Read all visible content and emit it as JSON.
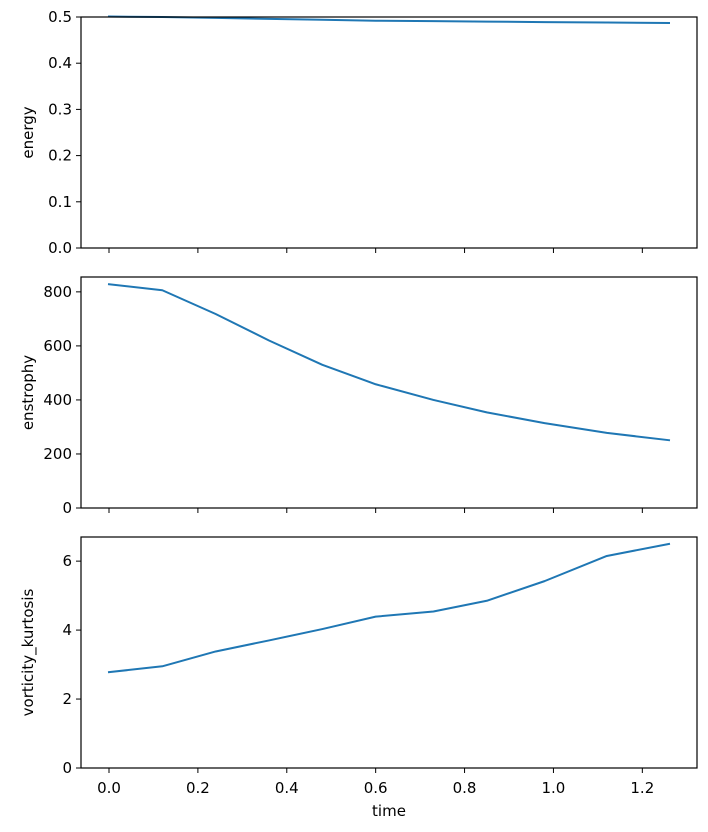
{
  "chart_data": [
    {
      "type": "line",
      "ylabel": "energy",
      "xlim": [
        -0.063,
        1.323
      ],
      "ylim": [
        0.0,
        0.5
      ],
      "yticks": [
        0.0,
        0.1,
        0.2,
        0.3,
        0.4,
        0.5
      ],
      "ytick_labels": [
        "0.0",
        "0.1",
        "0.2",
        "0.3",
        "0.4",
        "0.5"
      ],
      "grid": false,
      "series": [
        {
          "color": "#1f77b4",
          "x": [
            0.0,
            0.12,
            0.24,
            0.36,
            0.48,
            0.6,
            0.73,
            0.85,
            0.98,
            1.12,
            1.26
          ],
          "y": [
            0.501,
            0.5,
            0.498,
            0.496,
            0.494,
            0.492,
            0.491,
            0.49,
            0.489,
            0.488,
            0.487
          ]
        }
      ]
    },
    {
      "type": "line",
      "ylabel": "enstrophy",
      "xlim": [
        -0.063,
        1.323
      ],
      "ylim": [
        0,
        855
      ],
      "yticks": [
        0,
        200,
        400,
        600,
        800
      ],
      "ytick_labels": [
        "0",
        "200",
        "400",
        "600",
        "800"
      ],
      "grid": false,
      "series": [
        {
          "color": "#1f77b4",
          "x": [
            0.0,
            0.12,
            0.24,
            0.36,
            0.48,
            0.6,
            0.73,
            0.85,
            0.98,
            1.12,
            1.26
          ],
          "y": [
            828,
            806,
            718,
            620,
            530,
            458,
            400,
            354,
            314,
            278,
            251
          ]
        }
      ]
    },
    {
      "type": "line",
      "ylabel": "vorticity_kurtosis",
      "xlabel": "time",
      "xlim": [
        -0.063,
        1.323
      ],
      "ylim": [
        0,
        6.7
      ],
      "yticks": [
        0,
        2,
        4,
        6
      ],
      "ytick_labels": [
        "0",
        "2",
        "4",
        "6"
      ],
      "xticks": [
        0.0,
        0.2,
        0.4,
        0.6,
        0.8,
        1.0,
        1.2
      ],
      "xtick_labels": [
        "0.0",
        "0.2",
        "0.4",
        "0.6",
        "0.8",
        "1.0",
        "1.2"
      ],
      "grid": false,
      "series": [
        {
          "color": "#1f77b4",
          "x": [
            0.0,
            0.12,
            0.24,
            0.36,
            0.48,
            0.6,
            0.73,
            0.85,
            0.98,
            1.12,
            1.26
          ],
          "y": [
            2.78,
            2.95,
            3.38,
            3.7,
            4.03,
            4.39,
            4.54,
            4.85,
            5.42,
            6.15,
            6.5
          ]
        }
      ]
    }
  ]
}
